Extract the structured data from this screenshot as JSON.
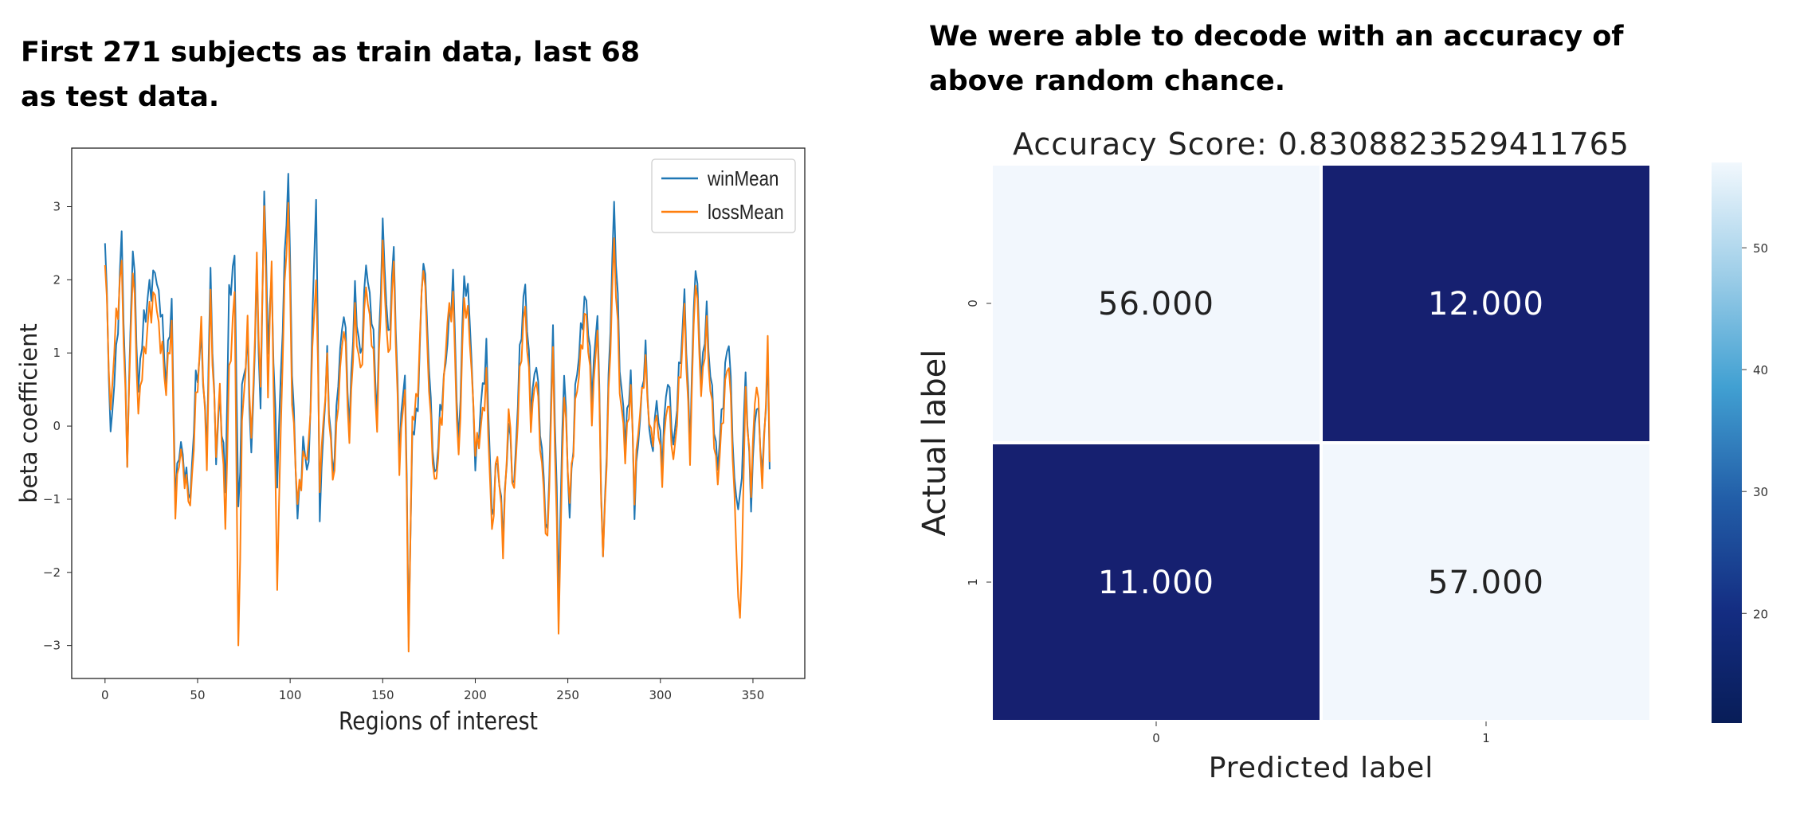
{
  "captions": {
    "left": "First 271 subjects as train data, last 68 as test data.",
    "right": "We were able to decode with an accuracy of above random chance."
  },
  "colors": {
    "win": "#1f77b4",
    "loss": "#ff7f0e",
    "cm_dark": "#162070",
    "cm_light": "#f2f7fd"
  },
  "chart_data": [
    {
      "type": "line",
      "title": "",
      "xlabel": "Regions of interest",
      "ylabel": "beta coefficient",
      "xlim": [
        -18,
        378
      ],
      "ylim": [
        -3.45,
        3.8
      ],
      "xticks": [
        0,
        50,
        100,
        150,
        200,
        250,
        300,
        350
      ],
      "yticks": [
        -3,
        -2,
        -1,
        0,
        1,
        2,
        3
      ],
      "grid": false,
      "legend": "top-right",
      "x_range": [
        0,
        359
      ],
      "series": [
        {
          "name": "winMean",
          "key_points": [
            [
              0,
              2.5
            ],
            [
              3,
              -0.1
            ],
            [
              6,
              1.0
            ],
            [
              9,
              2.6
            ],
            [
              12,
              -0.5
            ],
            [
              15,
              2.5
            ],
            [
              18,
              0.5
            ],
            [
              21,
              1.5
            ],
            [
              24,
              1.9
            ],
            [
              27,
              2.1
            ],
            [
              30,
              1.6
            ],
            [
              33,
              0.6
            ],
            [
              36,
              1.7
            ],
            [
              38,
              -1.0
            ],
            [
              40,
              -0.2
            ],
            [
              43,
              -0.5
            ],
            [
              46,
              -1.0
            ],
            [
              49,
              0.5
            ],
            [
              52,
              1.1
            ],
            [
              55,
              -0.3
            ],
            [
              57,
              2.1
            ],
            [
              60,
              -0.5
            ],
            [
              62,
              0.4
            ],
            [
              65,
              -0.9
            ],
            [
              67,
              1.7
            ],
            [
              70,
              2.3
            ],
            [
              72,
              -1.2
            ],
            [
              74,
              0.5
            ],
            [
              77,
              1.2
            ],
            [
              79,
              -0.5
            ],
            [
              82,
              2.0
            ],
            [
              84,
              0.2
            ],
            [
              86,
              3.3
            ],
            [
              88,
              1.2
            ],
            [
              90,
              2.0
            ],
            [
              93,
              -0.8
            ],
            [
              96,
              1.4
            ],
            [
              99,
              3.5
            ],
            [
              101,
              0.8
            ],
            [
              104,
              -1.2
            ],
            [
              107,
              -0.2
            ],
            [
              110,
              -0.6
            ],
            [
              114,
              3.2
            ],
            [
              116,
              -1.2
            ],
            [
              120,
              1.0
            ],
            [
              123,
              -0.7
            ],
            [
              126,
              0.6
            ],
            [
              129,
              1.6
            ],
            [
              132,
              0.0
            ],
            [
              135,
              1.9
            ],
            [
              138,
              0.9
            ],
            [
              141,
              2.2
            ],
            [
              144,
              1.5
            ],
            [
              147,
              0.2
            ],
            [
              150,
              2.8
            ],
            [
              153,
              1.2
            ],
            [
              156,
              2.4
            ],
            [
              159,
              -0.4
            ],
            [
              162,
              0.8
            ],
            [
              164,
              -2.8
            ],
            [
              166,
              -0.2
            ],
            [
              169,
              0.3
            ],
            [
              172,
              2.5
            ],
            [
              175,
              0.9
            ],
            [
              178,
              -0.8
            ],
            [
              182,
              0.3
            ],
            [
              185,
              1.2
            ],
            [
              188,
              2.1
            ],
            [
              191,
              -0.3
            ],
            [
              194,
              2.0
            ],
            [
              197,
              1.5
            ],
            [
              200,
              -0.5
            ],
            [
              203,
              0.3
            ],
            [
              206,
              1.1
            ],
            [
              209,
              -1.3
            ],
            [
              212,
              -0.5
            ],
            [
              215,
              -1.5
            ],
            [
              218,
              0.1
            ],
            [
              221,
              -0.8
            ],
            [
              224,
              1.0
            ],
            [
              227,
              1.9
            ],
            [
              230,
              0.2
            ],
            [
              233,
              0.9
            ],
            [
              236,
              -0.3
            ],
            [
              239,
              -1.5
            ],
            [
              242,
              1.3
            ],
            [
              245,
              -2.3
            ],
            [
              248,
              0.8
            ],
            [
              251,
              -1.2
            ],
            [
              254,
              0.5
            ],
            [
              257,
              1.3
            ],
            [
              260,
              1.7
            ],
            [
              263,
              0.4
            ],
            [
              266,
              1.6
            ],
            [
              269,
              -1.8
            ],
            [
              272,
              0.6
            ],
            [
              275,
              3.0
            ],
            [
              278,
              0.8
            ],
            [
              281,
              -0.2
            ],
            [
              284,
              0.8
            ],
            [
              286,
              -1.0
            ],
            [
              289,
              0.2
            ],
            [
              292,
              1.0
            ],
            [
              295,
              -0.5
            ],
            [
              298,
              0.3
            ],
            [
              301,
              -0.4
            ],
            [
              304,
              0.8
            ],
            [
              307,
              -0.3
            ],
            [
              310,
              0.6
            ],
            [
              313,
              1.7
            ],
            [
              316,
              -0.2
            ],
            [
              319,
              2.4
            ],
            [
              322,
              0.7
            ],
            [
              325,
              1.5
            ],
            [
              328,
              0.3
            ],
            [
              331,
              -0.6
            ],
            [
              334,
              0.5
            ],
            [
              337,
              1.3
            ],
            [
              340,
              -0.8
            ],
            [
              343,
              -1.2
            ],
            [
              346,
              0.6
            ],
            [
              349,
              -1.0
            ],
            [
              352,
              0.5
            ],
            [
              355,
              -0.6
            ],
            [
              358,
              0.8
            ],
            [
              359,
              -0.5
            ]
          ]
        },
        {
          "name": "lossMean",
          "key_points": [
            [
              0,
              2.2
            ],
            [
              3,
              0.2
            ],
            [
              6,
              1.5
            ],
            [
              9,
              2.2
            ],
            [
              12,
              -0.5
            ],
            [
              15,
              2.2
            ],
            [
              18,
              0.2
            ],
            [
              21,
              1.0
            ],
            [
              24,
              1.6
            ],
            [
              27,
              1.8
            ],
            [
              30,
              1.1
            ],
            [
              33,
              0.5
            ],
            [
              36,
              1.4
            ],
            [
              38,
              -1.2
            ],
            [
              40,
              -0.3
            ],
            [
              43,
              -0.6
            ],
            [
              46,
              -1.1
            ],
            [
              49,
              0.2
            ],
            [
              52,
              1.3
            ],
            [
              55,
              -0.5
            ],
            [
              57,
              1.8
            ],
            [
              60,
              -0.4
            ],
            [
              62,
              0.5
            ],
            [
              65,
              -1.4
            ],
            [
              67,
              0.6
            ],
            [
              70,
              1.8
            ],
            [
              72,
              -3.1
            ],
            [
              74,
              0.0
            ],
            [
              77,
              1.4
            ],
            [
              79,
              -0.3
            ],
            [
              82,
              2.1
            ],
            [
              84,
              0.5
            ],
            [
              86,
              3.1
            ],
            [
              88,
              0.6
            ],
            [
              90,
              2.2
            ],
            [
              93,
              -2.2
            ],
            [
              96,
              1.0
            ],
            [
              99,
              3.1
            ],
            [
              101,
              0.4
            ],
            [
              104,
              -1.0
            ],
            [
              107,
              -0.4
            ],
            [
              110,
              -0.3
            ],
            [
              114,
              2.1
            ],
            [
              116,
              -0.8
            ],
            [
              120,
              0.9
            ],
            [
              123,
              -0.8
            ],
            [
              126,
              0.3
            ],
            [
              129,
              1.4
            ],
            [
              132,
              -0.2
            ],
            [
              135,
              1.6
            ],
            [
              138,
              0.7
            ],
            [
              141,
              1.9
            ],
            [
              144,
              1.2
            ],
            [
              147,
              0.0
            ],
            [
              150,
              2.5
            ],
            [
              153,
              0.9
            ],
            [
              156,
              2.2
            ],
            [
              159,
              -0.6
            ],
            [
              162,
              0.6
            ],
            [
              164,
              -3.0
            ],
            [
              166,
              0.0
            ],
            [
              169,
              0.5
            ],
            [
              172,
              2.4
            ],
            [
              175,
              0.6
            ],
            [
              178,
              -0.9
            ],
            [
              182,
              0.1
            ],
            [
              185,
              1.5
            ],
            [
              188,
              1.8
            ],
            [
              191,
              -0.5
            ],
            [
              194,
              1.7
            ],
            [
              197,
              1.2
            ],
            [
              200,
              -0.3
            ],
            [
              203,
              0.0
            ],
            [
              206,
              0.7
            ],
            [
              209,
              -1.5
            ],
            [
              212,
              -0.4
            ],
            [
              215,
              -1.7
            ],
            [
              218,
              0.3
            ],
            [
              221,
              -0.9
            ],
            [
              224,
              0.7
            ],
            [
              227,
              1.6
            ],
            [
              230,
              0.0
            ],
            [
              233,
              0.7
            ],
            [
              236,
              -0.5
            ],
            [
              239,
              -1.6
            ],
            [
              242,
              1.0
            ],
            [
              245,
              -2.8
            ],
            [
              248,
              0.5
            ],
            [
              251,
              -1.0
            ],
            [
              254,
              0.3
            ],
            [
              257,
              1.0
            ],
            [
              260,
              1.5
            ],
            [
              263,
              0.1
            ],
            [
              266,
              1.4
            ],
            [
              269,
              -1.8
            ],
            [
              272,
              0.4
            ],
            [
              275,
              2.5
            ],
            [
              278,
              0.5
            ],
            [
              281,
              -0.4
            ],
            [
              284,
              0.6
            ],
            [
              286,
              -0.8
            ],
            [
              289,
              0.3
            ],
            [
              292,
              0.8
            ],
            [
              295,
              -0.3
            ],
            [
              298,
              0.1
            ],
            [
              301,
              -0.6
            ],
            [
              304,
              0.5
            ],
            [
              307,
              -0.5
            ],
            [
              310,
              0.4
            ],
            [
              313,
              1.5
            ],
            [
              316,
              -0.4
            ],
            [
              319,
              2.2
            ],
            [
              322,
              0.5
            ],
            [
              325,
              1.3
            ],
            [
              328,
              0.1
            ],
            [
              331,
              -0.8
            ],
            [
              334,
              0.3
            ],
            [
              337,
              1.0
            ],
            [
              340,
              -1.0
            ],
            [
              343,
              -2.9
            ],
            [
              346,
              0.4
            ],
            [
              349,
              -0.8
            ],
            [
              352,
              0.8
            ],
            [
              355,
              -0.8
            ],
            [
              358,
              1.0
            ],
            [
              359,
              -0.4
            ]
          ]
        }
      ]
    },
    {
      "type": "heatmap",
      "title": "Accuracy Score: 0.8308823529411765",
      "xlabel": "Predicted label",
      "ylabel": "Actual label",
      "x_categories": [
        "0",
        "1"
      ],
      "y_categories": [
        "0",
        "1"
      ],
      "values": [
        [
          56,
          12
        ],
        [
          11,
          57
        ]
      ],
      "labels": [
        [
          "56.000",
          "12.000"
        ],
        [
          "11.000",
          "57.000"
        ]
      ],
      "colorbar": {
        "range": [
          11,
          57
        ],
        "ticks": [
          20,
          30,
          40,
          50
        ],
        "colormap": "Blues_r"
      }
    }
  ]
}
